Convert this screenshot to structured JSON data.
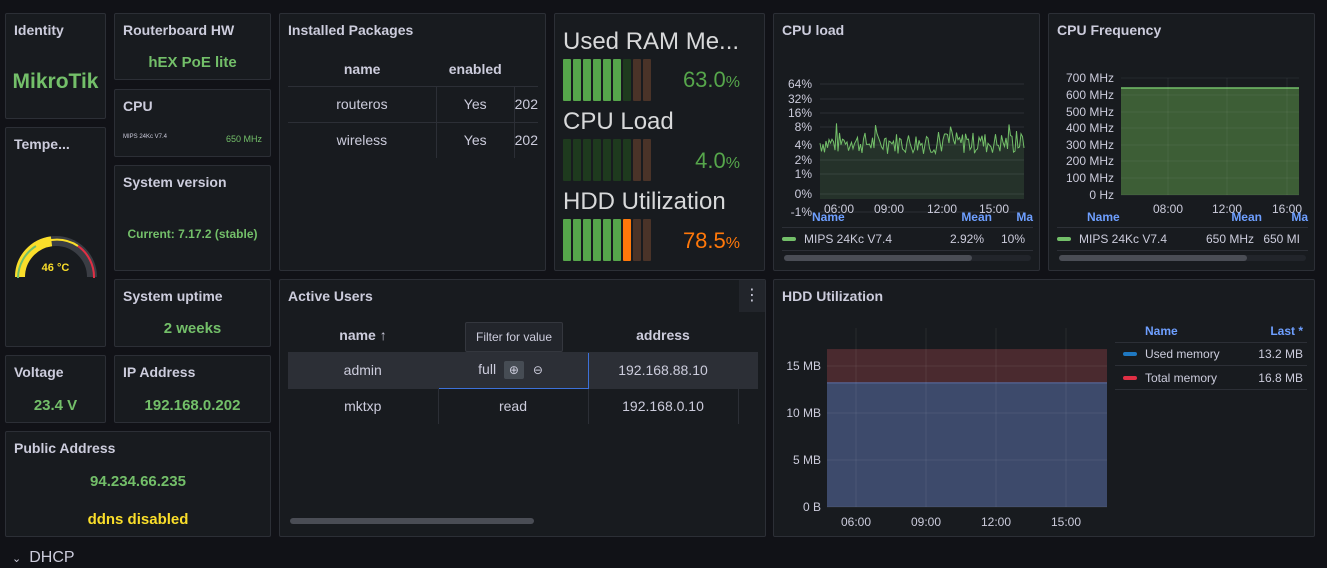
{
  "identity": {
    "title": "Identity",
    "value": "MikroTik"
  },
  "routerboard": {
    "title": "Routerboard HW",
    "value": "hEX PoE lite"
  },
  "cpu": {
    "title": "CPU",
    "model": "MIPS 24Kc V7.4",
    "freq": "650 MHz"
  },
  "temperature": {
    "title": "Tempe...",
    "value": "46 °C",
    "level": 0.46
  },
  "system_version": {
    "title": "System version",
    "value": "Current: 7.17.2 (stable)"
  },
  "system_uptime": {
    "title": "System uptime",
    "value": "2 weeks"
  },
  "voltage": {
    "title": "Voltage",
    "value": "23.4 V"
  },
  "ip_address": {
    "title": "IP Address",
    "value": "192.168.0.202"
  },
  "public_address": {
    "title": "Public Address",
    "value": "94.234.66.235",
    "ddns": "ddns disabled"
  },
  "packages": {
    "title": "Installed Packages",
    "columns": [
      "name",
      "enabled"
    ],
    "rows": [
      {
        "name": "routeros",
        "enabled": "Yes",
        "extra": "202"
      },
      {
        "name": "wireless",
        "enabled": "Yes",
        "extra": "202"
      }
    ]
  },
  "bar_gauges": [
    {
      "title": "Used RAM Me...",
      "value": "63.0",
      "unit": "%",
      "fraction": 0.63,
      "color": "#56a64b"
    },
    {
      "title": "CPU Load",
      "value": "4.0",
      "unit": "%",
      "fraction": 0.04,
      "color": "#56a64b"
    },
    {
      "title": "HDD Utilization",
      "value": "78.5",
      "unit": "%",
      "fraction": 0.785,
      "color": "#ff780a"
    }
  ],
  "cpu_load": {
    "title": "CPU load",
    "y_ticks": [
      "64%",
      "32%",
      "16%",
      "8%",
      "4%",
      "2%",
      "1%",
      "0%",
      "-1%"
    ],
    "x_ticks": [
      "06:00",
      "09:00",
      "12:00",
      "15:00"
    ],
    "legend_headers": [
      "Name",
      "Mean",
      "Ma"
    ],
    "legend_row": {
      "name": "MIPS 24Kc V7.4",
      "mean": "2.92%",
      "max": "10%"
    },
    "color": "#73bf69"
  },
  "cpu_freq": {
    "title": "CPU Frequency",
    "y_ticks": [
      "700 MHz",
      "600 MHz",
      "500 MHz",
      "400 MHz",
      "300 MHz",
      "200 MHz",
      "100 MHz",
      "0 Hz"
    ],
    "x_ticks": [
      "08:00",
      "12:00",
      "16:00"
    ],
    "legend_headers": [
      "Name",
      "Mean",
      "Ma"
    ],
    "legend_row": {
      "name": "MIPS 24Kc V7.4",
      "mean": "650 MHz",
      "max": "650 MI"
    },
    "color": "#73bf69"
  },
  "active_users": {
    "title": "Active Users",
    "columns": [
      "name ↑",
      "",
      "address"
    ],
    "tooltip": "Filter for value",
    "rows": [
      {
        "name": "admin",
        "group": "full",
        "address": "192.168.88.10"
      },
      {
        "name": "mktxp",
        "group": "read",
        "address": "192.168.0.10"
      }
    ]
  },
  "hdd": {
    "title": "HDD Utilization",
    "y_ticks": [
      "15 MB",
      "10 MB",
      "5 MB",
      "0 B"
    ],
    "x_ticks": [
      "06:00",
      "09:00",
      "12:00",
      "15:00"
    ],
    "legend_headers": [
      "Name",
      "Last *"
    ],
    "series": [
      {
        "name": "Used memory",
        "value": "13.2 MB",
        "color": "#1f78c1"
      },
      {
        "name": "Total memory",
        "value": "16.8 MB",
        "color": "#e02f44"
      }
    ]
  },
  "dhcp_row": {
    "label": "DHCP"
  }
}
